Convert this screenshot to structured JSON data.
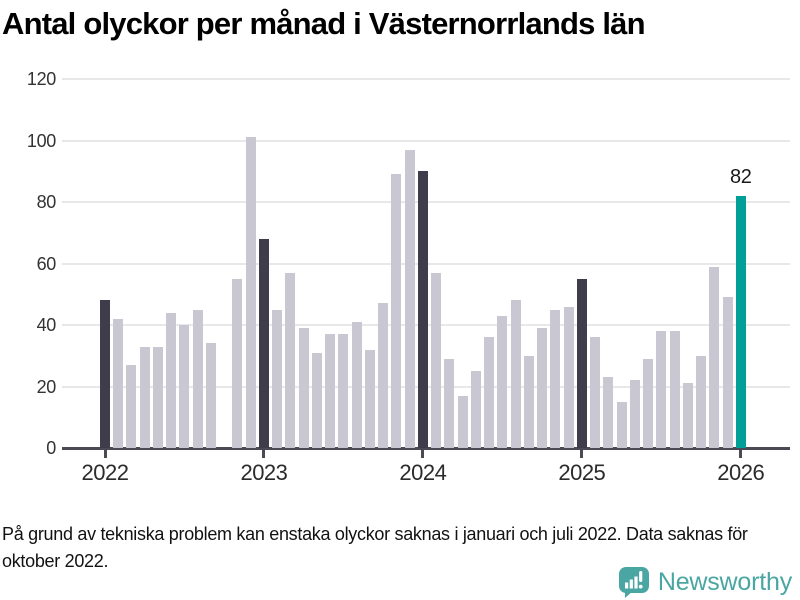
{
  "page": {
    "title": "Antal olyckor per månad i Västernorrlands län"
  },
  "chart_data": {
    "type": "bar",
    "title": "Antal olyckor per månad i Västernorrlands län",
    "xlabel": "",
    "ylabel": "",
    "ylim": [
      0,
      120
    ],
    "y_ticks": [
      0,
      20,
      40,
      60,
      80,
      100,
      120
    ],
    "x_tick_labels": [
      "2022",
      "2023",
      "2024",
      "2025",
      "2026"
    ],
    "grid": true,
    "legend": false,
    "frequency": "monthly",
    "x": [
      "2022-01",
      "2022-02",
      "2022-03",
      "2022-04",
      "2022-05",
      "2022-06",
      "2022-07",
      "2022-08",
      "2022-09",
      "2022-10",
      "2022-11",
      "2022-12",
      "2023-01",
      "2023-02",
      "2023-03",
      "2023-04",
      "2023-05",
      "2023-06",
      "2023-07",
      "2023-08",
      "2023-09",
      "2023-10",
      "2023-11",
      "2023-12",
      "2024-01",
      "2024-02",
      "2024-03",
      "2024-04",
      "2024-05",
      "2024-06",
      "2024-07",
      "2024-08",
      "2024-09",
      "2024-10",
      "2024-11",
      "2024-12",
      "2025-01",
      "2025-02",
      "2025-03",
      "2025-04",
      "2025-05",
      "2025-06",
      "2025-07",
      "2025-08",
      "2025-09",
      "2025-10",
      "2025-11",
      "2025-12",
      "2026-01"
    ],
    "values": [
      48,
      42,
      27,
      33,
      33,
      44,
      40,
      45,
      34,
      null,
      55,
      101,
      68,
      45,
      57,
      39,
      31,
      37,
      37,
      41,
      32,
      47,
      89,
      97,
      90,
      57,
      29,
      17,
      25,
      36,
      43,
      48,
      30,
      39,
      45,
      46,
      55,
      36,
      23,
      15,
      22,
      29,
      38,
      38,
      21,
      30,
      59,
      49,
      82
    ],
    "missing_months": [
      "2022-10"
    ],
    "highlight_dark_months": [
      "2022-01",
      "2023-01",
      "2024-01",
      "2025-01"
    ],
    "highlight_accent_month": "2026-01",
    "annotation": {
      "text": "82",
      "month": "2026-01"
    }
  },
  "footnote": "På grund av tekniska problem kan enstaka olyckor saknas i januari och juli 2022. Data saknas för oktober 2022.",
  "branding": {
    "logo_text": "Newsworthy",
    "logo_icon": "newsworthy-speech-bubble-bar-chart-icon"
  },
  "colors": {
    "bar_default": "#c9c7d2",
    "bar_dark": "#3f3c4b",
    "bar_accent": "#00a098",
    "axis": "#4b4953",
    "gridline": "#e8e8e8",
    "brand_teal": "#4aa6a2"
  }
}
